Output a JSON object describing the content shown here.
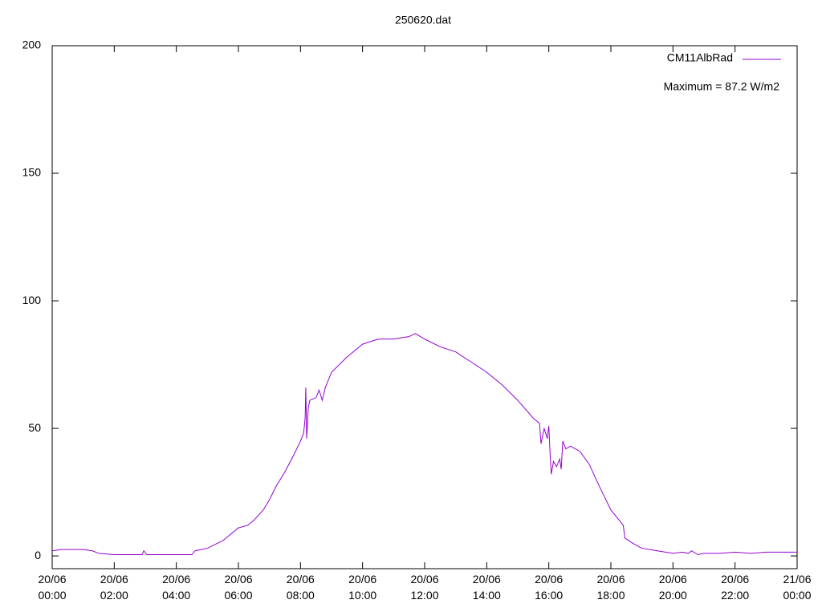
{
  "chart_data": {
    "type": "line",
    "title": "250620.dat",
    "annotation": "Maximum = 87.2 W/m2",
    "legend": "top-right",
    "x": [
      0,
      0.3,
      1,
      1.3,
      1.5,
      2,
      2.9,
      2.95,
      3.05,
      4.5,
      4.6,
      5,
      5.5,
      6,
      6.3,
      6.5,
      6.8,
      7,
      7.2,
      7.5,
      7.8,
      8,
      8.1,
      8.15,
      8.17,
      8.2,
      8.25,
      8.3,
      8.5,
      8.6,
      8.7,
      8.8,
      9,
      9.5,
      10,
      10.5,
      11,
      11.5,
      11.7,
      12,
      12.5,
      13,
      13.5,
      14,
      14.5,
      15,
      15.5,
      15.7,
      15.75,
      15.85,
      15.95,
      16,
      16.05,
      16.08,
      16.15,
      16.25,
      16.35,
      16.4,
      16.45,
      16.55,
      16.7,
      17,
      17.3,
      17.6,
      18,
      18.4,
      18.45,
      18.7,
      19,
      19.5,
      20,
      20.3,
      20.5,
      20.6,
      20.8,
      21,
      21.5,
      22,
      22.5,
      23,
      24
    ],
    "series": [
      {
        "name": "CM11AlbRad",
        "color": "#9400d3",
        "values": [
          2,
          2.5,
          2.5,
          2,
          1,
          0.5,
          0.5,
          2,
          0.5,
          0.5,
          2,
          3,
          6,
          11,
          12,
          14,
          18,
          22,
          27,
          33,
          40,
          45,
          48,
          54,
          66,
          46,
          58,
          61,
          62,
          65,
          61,
          66,
          72,
          78,
          83,
          85,
          85,
          86,
          87.2,
          85,
          82,
          80,
          76,
          72,
          67,
          61,
          54,
          52,
          44,
          50,
          46,
          51,
          38,
          32,
          37,
          35,
          38,
          34,
          45,
          42,
          43,
          41,
          36,
          28,
          18,
          12,
          7,
          5,
          3,
          2,
          1,
          1.5,
          1,
          2,
          0.5,
          1,
          1,
          1.5,
          1,
          1.5,
          1.5
        ]
      }
    ],
    "xlim": [
      0,
      24
    ],
    "xticks": [
      {
        "value": 0,
        "label": "20/06\n00:00"
      },
      {
        "value": 2,
        "label": "20/06\n02:00"
      },
      {
        "value": 4,
        "label": "20/06\n04:00"
      },
      {
        "value": 6,
        "label": "20/06\n06:00"
      },
      {
        "value": 8,
        "label": "20/06\n08:00"
      },
      {
        "value": 10,
        "label": "20/06\n10:00"
      },
      {
        "value": 12,
        "label": "20/06\n12:00"
      },
      {
        "value": 14,
        "label": "20/06\n14:00"
      },
      {
        "value": 16,
        "label": "20/06\n16:00"
      },
      {
        "value": 18,
        "label": "20/06\n18:00"
      },
      {
        "value": 20,
        "label": "20/06\n20:00"
      },
      {
        "value": 22,
        "label": "20/06\n22:00"
      },
      {
        "value": 24,
        "label": "21/06\n00:00"
      }
    ],
    "ylim": [
      -5,
      200
    ],
    "yticks": [
      0,
      50,
      100,
      150,
      200
    ],
    "grid": false
  }
}
